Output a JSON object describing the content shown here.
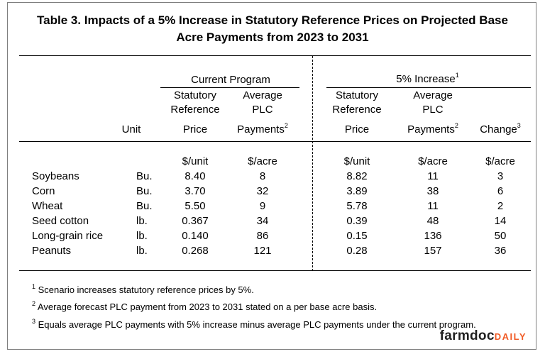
{
  "title_line1": "Table 3.  Impacts of a 5% Increase in Statutory Reference Prices on Projected Base",
  "title_line2": "Acre Payments from 2023 to 2031",
  "group_current": "Current Program",
  "group_increase": "5% Increase",
  "group_increase_note": "1",
  "headers": {
    "unit": "Unit",
    "srp_line1": "Statutory",
    "srp_line2": "Reference",
    "srp_line3": "Price",
    "plc_line1": "Average",
    "plc_line2": "PLC",
    "plc_line3": "Payments",
    "plc_note": "2",
    "change": "Change",
    "change_note": "3"
  },
  "units_row": {
    "c1": "$/unit",
    "c2": "$/acre",
    "c3": "$/unit",
    "c4": "$/acre",
    "c5": "$/acre"
  },
  "rows": [
    {
      "crop": "Soybeans",
      "unit": "Bu.",
      "cur_price": "8.40",
      "cur_plc": "8",
      "new_price": "8.82",
      "new_plc": "11",
      "change": "3"
    },
    {
      "crop": "Corn",
      "unit": "Bu.",
      "cur_price": "3.70",
      "cur_plc": "32",
      "new_price": "3.89",
      "new_plc": "38",
      "change": "6"
    },
    {
      "crop": "Wheat",
      "unit": "Bu.",
      "cur_price": "5.50",
      "cur_plc": "9",
      "new_price": "5.78",
      "new_plc": "11",
      "change": "2"
    },
    {
      "crop": "Seed cotton",
      "unit": "lb.",
      "cur_price": "0.367",
      "cur_plc": "34",
      "new_price": "0.39",
      "new_plc": "48",
      "change": "14"
    },
    {
      "crop": "Long-grain rice",
      "unit": "lb.",
      "cur_price": "0.140",
      "cur_plc": "86",
      "new_price": "0.15",
      "new_plc": "136",
      "change": "50"
    },
    {
      "crop": "Peanuts",
      "unit": "lb.",
      "cur_price": "0.268",
      "cur_plc": "121",
      "new_price": "0.28",
      "new_plc": "157",
      "change": "36"
    }
  ],
  "footnotes": [
    {
      "mark": "1",
      "text": " Scenario increases statutory reference prices by 5%."
    },
    {
      "mark": "2",
      "text": " Average forecast PLC  payment from 2023 to 2031 stated on a per base acre basis."
    },
    {
      "mark": "3",
      "text": " Equals average PLC payments with 5% increase minus average PLC payments under the current program."
    }
  ],
  "brand": {
    "main": "farmdoc",
    "sub": "DAILY"
  }
}
